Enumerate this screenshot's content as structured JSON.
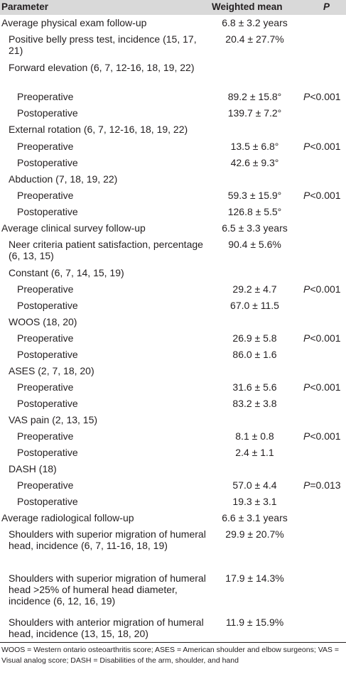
{
  "header": {
    "parameter": "Parameter",
    "weighted_mean": "Weighted mean",
    "p": "P"
  },
  "rows": [
    {
      "level": 0,
      "label": "Average physical exam follow-up",
      "value": "6.8 ± 3.2 years",
      "p": ""
    },
    {
      "level": 1,
      "label": "Positive belly press test, incidence (15, 17, 21)",
      "value": "20.4 ± 27.7%",
      "p": ""
    },
    {
      "level": 1,
      "label": "Forward elevation (6, 7, 12-16, 18, 19, 22)",
      "value": "",
      "p": ""
    },
    {
      "level": 2,
      "label": "Preoperative",
      "value": "89.2 ± 15.8°",
      "p": "<0.001"
    },
    {
      "level": 2,
      "label": "Postoperative",
      "value": "139.7 ± 7.2°",
      "p": ""
    },
    {
      "level": 1,
      "label": "External rotation (6, 7, 12-16, 18, 19, 22)",
      "value": "",
      "p": ""
    },
    {
      "level": 2,
      "label": "Preoperative",
      "value": "13.5 ± 6.8°",
      "p": "<0.001"
    },
    {
      "level": 2,
      "label": "Postoperative",
      "value": "42.6 ± 9.3°",
      "p": ""
    },
    {
      "level": 1,
      "label": "Abduction (7, 18, 19, 22)",
      "value": "",
      "p": ""
    },
    {
      "level": 2,
      "label": "Preoperative",
      "value": "59.3 ± 15.9°",
      "p": "<0.001"
    },
    {
      "level": 2,
      "label": "Postoperative",
      "value": "126.8 ± 5.5°",
      "p": ""
    },
    {
      "level": 0,
      "label": "Average clinical survey follow-up",
      "value": "6.5 ± 3.3 years",
      "p": ""
    },
    {
      "level": 1,
      "label": "Neer criteria patient satisfaction, percentage (6, 13, 15)",
      "value": "90.4 ± 5.6%",
      "p": ""
    },
    {
      "level": 1,
      "label": "Constant (6, 7, 14, 15, 19)",
      "value": "",
      "p": ""
    },
    {
      "level": 2,
      "label": "Preoperative",
      "value": "29.2 ± 4.7",
      "p": "<0.001"
    },
    {
      "level": 2,
      "label": "Postoperative",
      "value": "67.0 ± 11.5",
      "p": ""
    },
    {
      "level": 1,
      "label": "WOOS (18, 20)",
      "value": "",
      "p": ""
    },
    {
      "level": 2,
      "label": "Preoperative",
      "value": "26.9 ± 5.8",
      "p": "<0.001"
    },
    {
      "level": 2,
      "label": "Postoperative",
      "value": "86.0 ± 1.6",
      "p": ""
    },
    {
      "level": 1,
      "label": "ASES (2, 7, 18, 20)",
      "value": "",
      "p": ""
    },
    {
      "level": 2,
      "label": "Preoperative",
      "value": "31.6 ± 5.6",
      "p": "<0.001"
    },
    {
      "level": 2,
      "label": "Postoperative",
      "value": "83.2 ± 3.8",
      "p": ""
    },
    {
      "level": 1,
      "label": "VAS pain (2, 13, 15)",
      "value": "",
      "p": ""
    },
    {
      "level": 2,
      "label": "Preoperative",
      "value": "8.1 ± 0.8",
      "p": "<0.001"
    },
    {
      "level": 2,
      "label": "Postoperative",
      "value": "2.4 ± 1.1",
      "p": ""
    },
    {
      "level": 1,
      "label": "DASH (18)",
      "value": "",
      "p": ""
    },
    {
      "level": 2,
      "label": "Preoperative",
      "value": "57.0 ± 4.4",
      "p": "=0.013"
    },
    {
      "level": 2,
      "label": "Postoperative",
      "value": "19.3 ± 3.1",
      "p": ""
    },
    {
      "level": 0,
      "label": "Average radiological follow-up",
      "value": "6.6 ± 3.1 years",
      "p": ""
    },
    {
      "level": 1,
      "label": "Shoulders with superior migration of humeral head, incidence (6, 7, 11-16, 18, 19)",
      "value": "29.9 ± 20.7%",
      "p": ""
    },
    {
      "level": 1,
      "label": "Shoulders with superior migration of humeral head >25% of humeral head diameter, incidence (6, 12, 16, 19)",
      "value": "17.9 ± 14.3%",
      "p": ""
    },
    {
      "level": 1,
      "label": "Shoulders with anterior migration of humeral head, incidence (13, 15, 18, 20)",
      "value": "11.9 ± 15.9%",
      "p": ""
    }
  ],
  "footnote": "WOOS = Western ontario osteoarthritis score; ASES = American shoulder and elbow surgeons; VAS = Visual analog score; DASH = Disabilities of the arm, shoulder, and hand"
}
